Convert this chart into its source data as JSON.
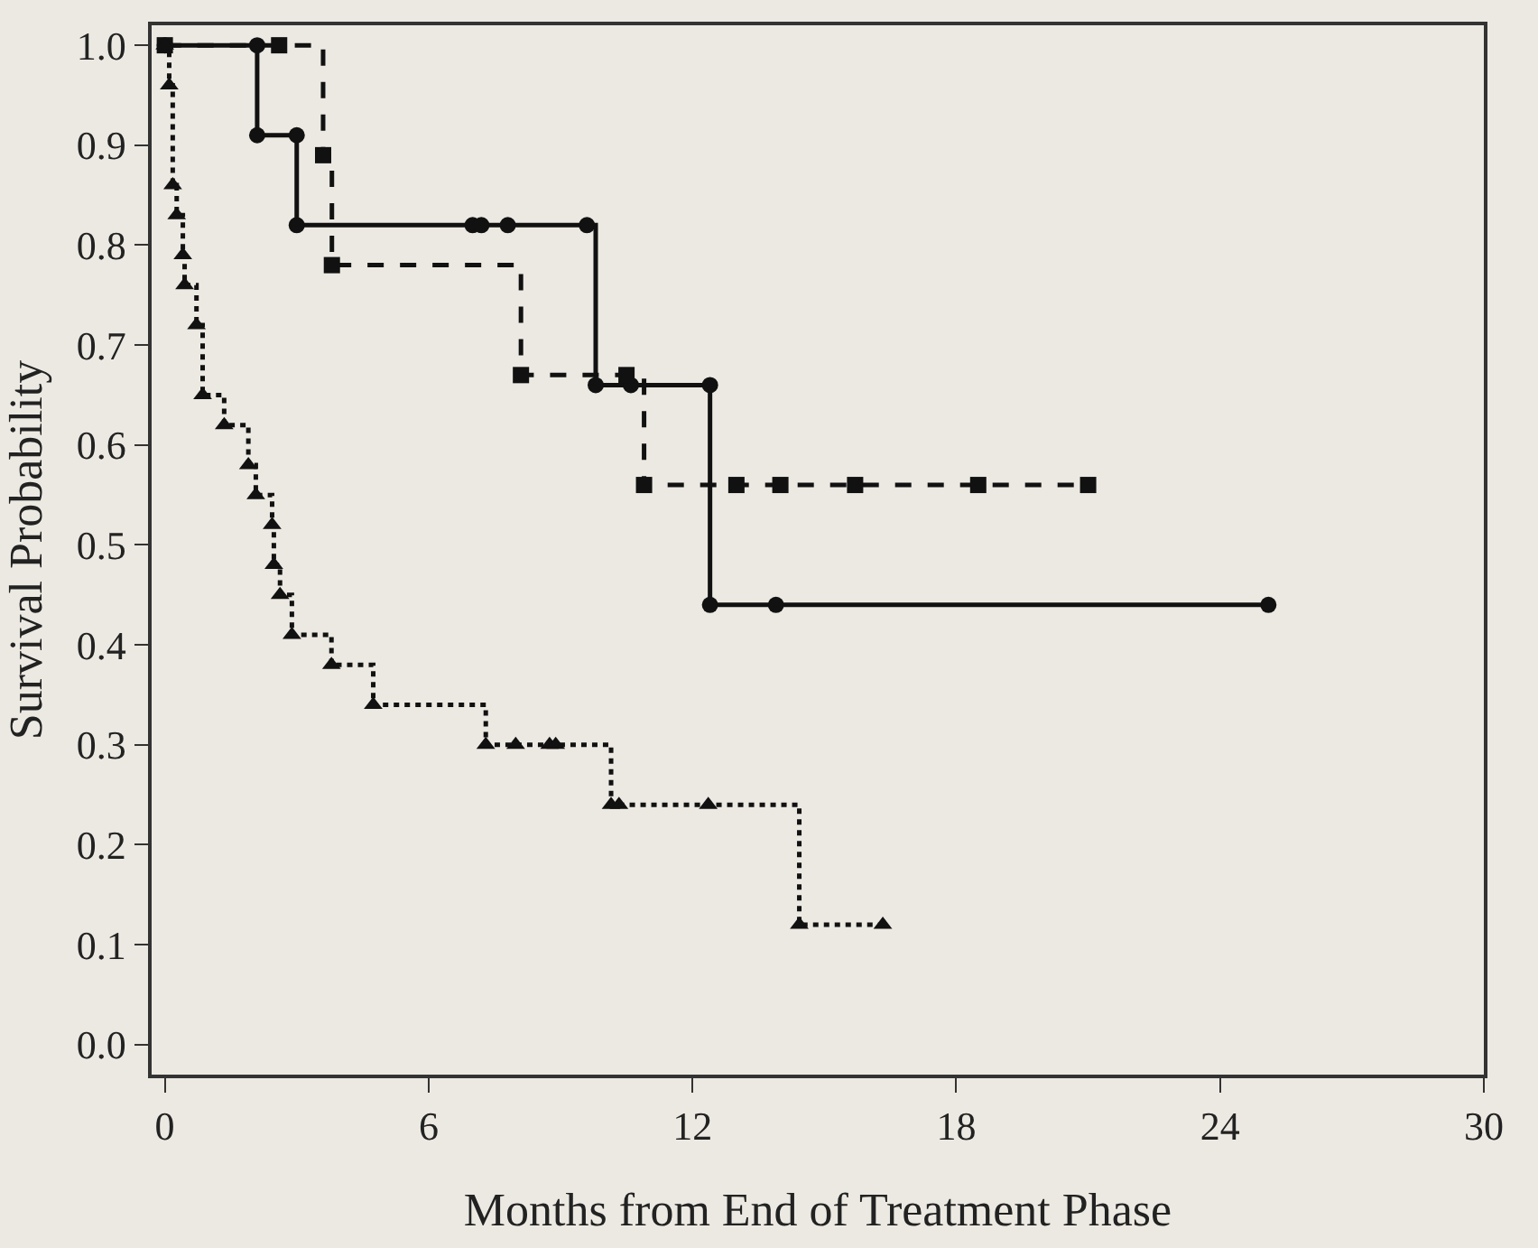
{
  "chart_data": {
    "type": "step",
    "xlabel": "Months from End of Treatment Phase",
    "ylabel": "Survival Probability",
    "xlim": [
      -0.3,
      30
    ],
    "ylim": [
      -0.03,
      1.02
    ],
    "xticks": [
      0,
      6,
      12,
      18,
      24,
      30
    ],
    "yticks": [
      {
        "value": 0,
        "label": "0.0"
      },
      0.1,
      0.2,
      0.3,
      0.4,
      0.5,
      0.6,
      0.7,
      0.8,
      0.9,
      {
        "value": 1,
        "label": "1.0"
      }
    ],
    "grid": false,
    "series": [
      {
        "color": "#111111",
        "line_style": "solid",
        "marker": "circle",
        "x": [
          0,
          2.1,
          2.1,
          3.0,
          3.0,
          7.0,
          7.2,
          7.8,
          9.6,
          9.8,
          10.6,
          12.4,
          12.4,
          13.9,
          25.1
        ],
        "values": [
          1.0,
          1.0,
          0.91,
          0.91,
          0.82,
          0.82,
          0.82,
          0.82,
          0.82,
          0.66,
          0.66,
          0.66,
          0.44,
          0.44,
          0.44
        ]
      },
      {
        "color": "#111111",
        "line_style": "dashed",
        "marker": "square",
        "x": [
          0,
          2.6,
          3.6,
          3.8,
          8.1,
          10.5,
          10.9,
          13.0,
          14.0,
          15.7,
          18.5,
          21.0
        ],
        "values": [
          1.0,
          1.0,
          0.89,
          0.78,
          0.67,
          0.67,
          0.56,
          0.56,
          0.56,
          0.56,
          0.56,
          0.56
        ]
      },
      {
        "color": "#111111",
        "line_style": "dotted",
        "marker": "triangle",
        "x": [
          0,
          0.1,
          0.18,
          0.27,
          0.41,
          0.45,
          0.72,
          0.86,
          1.35,
          1.9,
          2.07,
          2.44,
          2.48,
          2.62,
          2.89,
          3.79,
          4.74,
          7.3,
          7.98,
          8.75,
          8.89,
          10.15,
          10.33,
          12.36,
          14.43,
          16.33
        ],
        "values": [
          1.0,
          0.96,
          0.86,
          0.83,
          0.79,
          0.76,
          0.72,
          0.65,
          0.62,
          0.58,
          0.55,
          0.52,
          0.48,
          0.45,
          0.41,
          0.38,
          0.34,
          0.3,
          0.3,
          0.3,
          0.3,
          0.24,
          0.24,
          0.24,
          0.12,
          0.12
        ]
      }
    ]
  }
}
